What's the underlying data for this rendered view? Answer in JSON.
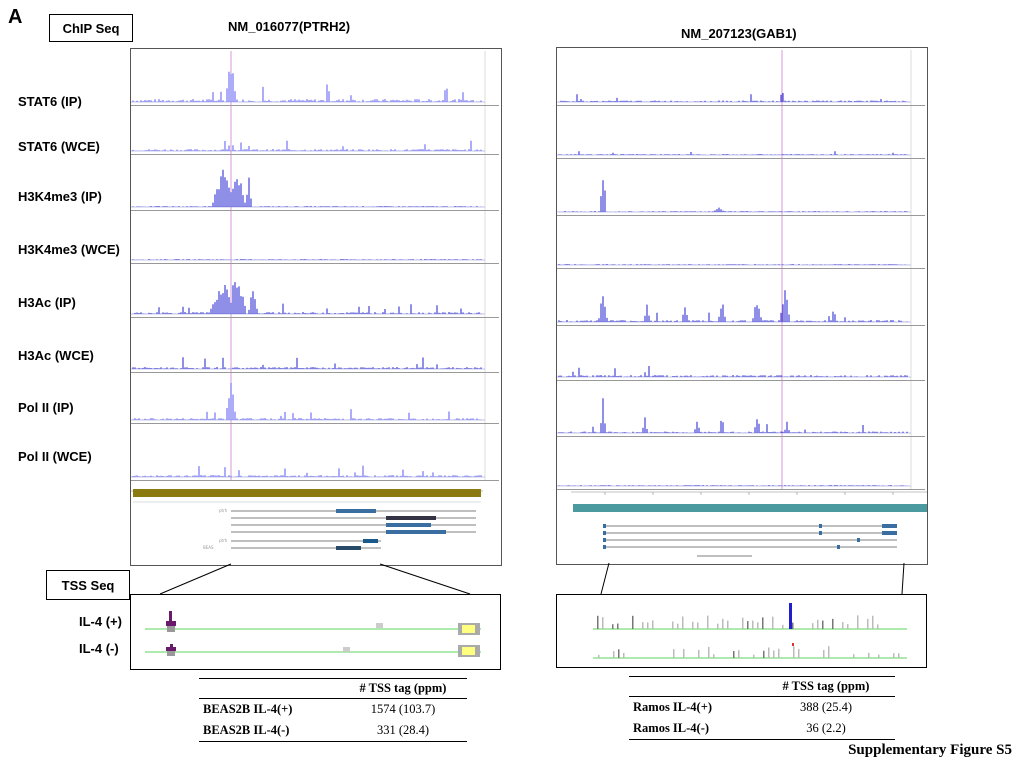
{
  "panel_letter": "A",
  "chip_label": "ChIP Seq",
  "tss_label": "TSS Seq",
  "left_gene": "NM_016077(PTRH2)",
  "right_gene": "NM_207123(GAB1)",
  "tracks": [
    {
      "label": "STAT6 (IP)"
    },
    {
      "label": "STAT6 (WCE)"
    },
    {
      "label": "H3K4me3 (IP)"
    },
    {
      "label": "H3K4me3 (WCE)"
    },
    {
      "label": "H3Ac  (IP)"
    },
    {
      "label": "H3Ac  (WCE)"
    },
    {
      "label": "Pol II (IP)"
    },
    {
      "label": "Pol II (WCE)"
    }
  ],
  "tss_rows": [
    {
      "label": "IL-4 (+)"
    },
    {
      "label": "IL-4 (-)"
    }
  ],
  "left_table": {
    "header": "# TSS tag (ppm)",
    "rows": [
      {
        "name": "BEAS2B IL-4(+)",
        "value": "1574  (103.7)"
      },
      {
        "name": "BEAS2B IL-4(-)",
        "value": "331 (28.4)"
      }
    ]
  },
  "right_table": {
    "header": "# TSS tag (ppm)",
    "rows": [
      {
        "name": "Ramos IL-4(+)",
        "value": "388 (25.4)"
      },
      {
        "name": "Ramos IL-4(-)",
        "value": "36 (2.2)"
      }
    ]
  },
  "footer": "Supplementary Figure S5",
  "colors": {
    "signal": "#1f1fd0",
    "signal_light": "#5a5af0",
    "marker_line": "#d080d0",
    "olive_bar": "#8a7a10",
    "teal_bar": "#4a9aa0",
    "baseline_green": "#7ddc7d",
    "tss_purple": "#6a1a6a",
    "tss_yellow": "#ffff80"
  }
}
